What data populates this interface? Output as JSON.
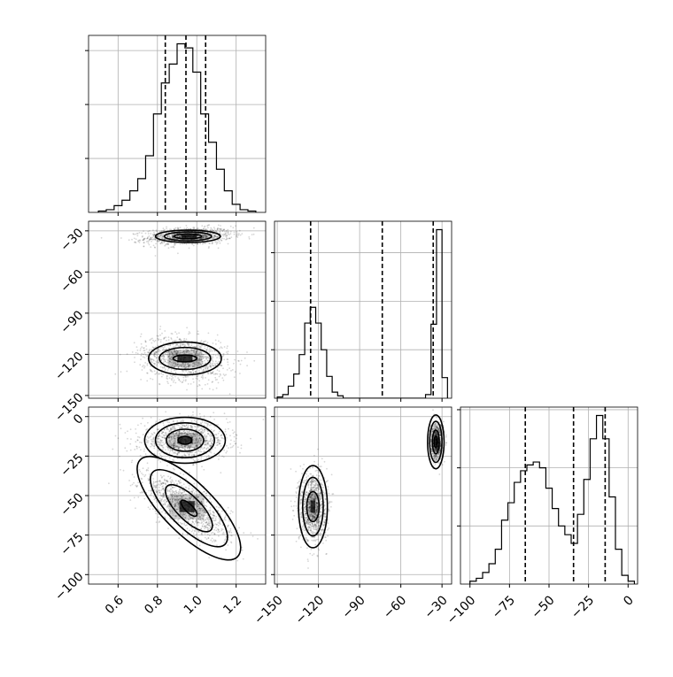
{
  "chart_data": {
    "type": "corner",
    "parameters": [
      {
        "xlim": [
          0.45,
          1.35
        ],
        "ticks": [
          0.6,
          0.8,
          1.0,
          1.2
        ],
        "tick_labels": [
          "0.6",
          "0.8",
          "1.0",
          "1.2"
        ]
      },
      {
        "xlim": [
          -152,
          -23
        ],
        "ticks": [
          -150,
          -120,
          -90,
          -60,
          -30
        ],
        "tick_labels": [
          "−150",
          "−120",
          "−90",
          "−60",
          "−30"
        ]
      },
      {
        "xlim": [
          -106,
          6
        ],
        "ticks": [
          -100,
          -75,
          -50,
          -25,
          0
        ],
        "tick_labels": [
          "−100",
          "−75",
          "−50",
          "−25",
          "0"
        ]
      }
    ],
    "histograms": [
      {
        "param": 0,
        "edges": [
          0.5,
          0.54,
          0.58,
          0.62,
          0.66,
          0.7,
          0.74,
          0.78,
          0.82,
          0.86,
          0.9,
          0.94,
          0.98,
          1.02,
          1.06,
          1.1,
          1.14,
          1.18,
          1.22,
          1.26,
          1.3
        ],
        "counts": [
          1,
          2,
          5,
          9,
          16,
          25,
          42,
          73,
          96,
          110,
          125,
          122,
          104,
          73,
          52,
          32,
          16,
          6,
          2,
          1
        ],
        "quantiles": [
          0.84,
          0.945,
          1.045
        ]
      },
      {
        "param": 1,
        "edges": [
          -150,
          -146,
          -142,
          -138,
          -134,
          -130,
          -126,
          -122,
          -118,
          -114,
          -110,
          -106,
          -102,
          -98,
          -94,
          -90,
          -86,
          -82,
          -78,
          -74,
          -70,
          -66,
          -62,
          -58,
          -54,
          -50,
          -46,
          -42,
          -38,
          -34,
          -30,
          -26
        ],
        "counts": [
          1,
          3,
          10,
          20,
          36,
          62,
          75,
          62,
          40,
          18,
          5,
          2,
          0,
          0,
          0,
          0,
          0,
          0,
          0,
          0,
          0,
          0,
          0,
          0,
          0,
          0,
          0,
          3,
          61,
          139,
          17,
          0
        ],
        "quantiles": [
          -125.7,
          -73.5,
          -36.4
        ]
      },
      {
        "param": 2,
        "edges": [
          -100,
          -96,
          -92,
          -88,
          -84,
          -80,
          -76,
          -72,
          -68,
          -64,
          -60,
          -56,
          -52,
          -48,
          -44,
          -40,
          -36,
          -32,
          -28,
          -24,
          -20,
          -16,
          -12,
          -8,
          -4,
          0,
          4
        ],
        "counts": [
          1,
          2,
          4,
          7,
          12,
          22,
          28,
          35,
          39,
          41,
          42,
          40,
          33,
          26,
          20,
          17,
          14,
          24,
          36,
          50,
          58,
          50,
          30,
          12,
          3,
          1
        ],
        "quantiles": [
          -65,
          -34.5,
          -14.5
        ]
      }
    ],
    "scatters": [
      {
        "x_param": 0,
        "y_param": 1,
        "clusters": [
          {
            "center": [
              0.96,
              -34
            ],
            "spread": [
              0.11,
              3.2
            ],
            "count": 1100,
            "corr": 0.2
          },
          {
            "center": [
              0.94,
              -123
            ],
            "spread": [
              0.11,
              8
            ],
            "count": 1100,
            "corr": -0.2
          }
        ],
        "contours": [
          {
            "center": [
              0.955,
              -34
            ],
            "widths": [
              0.33,
              0.24,
              0.14
            ],
            "heights": [
              9,
              6.5,
              3.5
            ]
          },
          {
            "center": [
              0.94,
              -123
            ],
            "widths": [
              0.37,
              0.26,
              0.12
            ],
            "heights": [
              24,
              16,
              5
            ]
          }
        ]
      },
      {
        "x_param": 0,
        "y_param": 2,
        "clusters": [
          {
            "center": [
              0.94,
              -15
            ],
            "spread": [
              0.11,
              6
            ],
            "count": 1100,
            "corr": 0.0
          },
          {
            "center": [
              0.95,
              -57
            ],
            "spread": [
              0.11,
              10
            ],
            "count": 1100,
            "corr": -0.7
          }
        ],
        "contours": [
          {
            "center": [
              0.94,
              -15
            ],
            "widths": [
              0.41,
              0.3,
              0.19,
              0.07
            ],
            "heights": [
              29,
              22,
              14,
              5
            ]
          },
          {
            "center": [
              0.96,
              -58
            ],
            "widths": [
              0.52,
              0.38,
              0.22,
              0.08
            ],
            "heights": [
              58,
              44,
              28,
              9
            ],
            "angle": -45
          }
        ]
      },
      {
        "x_param": 1,
        "y_param": 2,
        "clusters": [
          {
            "center": [
              -124,
              -57
            ],
            "spread": [
              5,
              11
            ],
            "count": 1100,
            "corr": 0.0
          },
          {
            "center": [
              -34,
              -16
            ],
            "spread": [
              2.2,
              6
            ],
            "count": 900,
            "corr": 0.0
          }
        ],
        "contours": [
          {
            "center": [
              -124,
              -57
            ],
            "widths": [
              21,
              15,
              9
            ],
            "heights": [
              52,
              37,
              19
            ]
          },
          {
            "center": [
              -34.5,
              -16
            ],
            "widths": [
              12,
              9,
              5,
              2.5
            ],
            "heights": [
              34,
              26,
              15,
              7
            ]
          }
        ]
      }
    ],
    "grid": true
  }
}
